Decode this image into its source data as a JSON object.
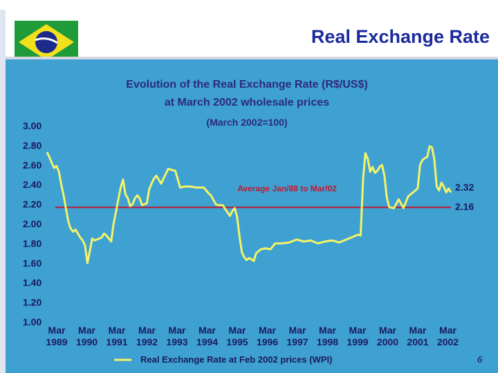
{
  "slide": {
    "title": "Real Exchange Rate",
    "page_number": "6"
  },
  "flag": {
    "green": "#1f9b3a",
    "yellow": "#f2e01c",
    "blue": "#1c2a8c",
    "band": "#ffffff"
  },
  "colors": {
    "background": "#3fa0d2",
    "series_line": "#f4f466",
    "average_line": "#c0182f",
    "title_text": "#1a2a9c"
  },
  "chart_data": {
    "type": "line",
    "title": "Evolution of the Real Exchange Rate (R$/US$)",
    "subtitle": "at March 2002 wholesale prices",
    "note": "(March 2002=100)",
    "y_ticks": [
      "3.00",
      "2.80",
      "2.60",
      "2.40",
      "2.20",
      "2.00",
      "1.80",
      "1.60",
      "1.40",
      "1.20",
      "1.00"
    ],
    "ylim": [
      1.0,
      3.0
    ],
    "x_ticks": [
      {
        "line1": "Mar",
        "line2": "1989"
      },
      {
        "line1": "Mar",
        "line2": "1990"
      },
      {
        "line1": "Mar",
        "line2": "1991"
      },
      {
        "line1": "Mar",
        "line2": "1992"
      },
      {
        "line1": "Mar",
        "line2": "1993"
      },
      {
        "line1": "Mar",
        "line2": "1994"
      },
      {
        "line1": "Mar",
        "line2": "1995"
      },
      {
        "line1": "Mar",
        "line2": "1996"
      },
      {
        "line1": "Mar",
        "line2": "1997"
      },
      {
        "line1": "Mar",
        "line2": "1998"
      },
      {
        "line1": "Mar",
        "line2": "1999"
      },
      {
        "line1": "Mar",
        "line2": "2000"
      },
      {
        "line1": "Mar",
        "line2": "2001"
      },
      {
        "line1": "Mar",
        "line2": "2002"
      }
    ],
    "average": {
      "label": "Average Jan/88 to Mar/02",
      "value": 2.16
    },
    "end_labels": {
      "last_value": "2.32",
      "average_value": "2.16"
    },
    "series": [
      {
        "name": "Real Exchange Rate at Feb 2002 prices (WPI)",
        "x": [
          1988.0,
          1988.083,
          1988.167,
          1988.25,
          1988.333,
          1988.417,
          1988.5,
          1988.583,
          1988.667,
          1988.75,
          1988.833,
          1988.917,
          1989.0,
          1989.083,
          1989.167,
          1989.25,
          1989.333,
          1989.417,
          1989.5,
          1989.583,
          1989.667,
          1989.75,
          1989.833,
          1989.917,
          1990.0,
          1990.083,
          1990.167,
          1990.25,
          1990.333,
          1990.417,
          1990.5,
          1990.583,
          1990.667,
          1990.75,
          1990.833,
          1990.917,
          1991.0,
          1991.083,
          1991.167,
          1991.25,
          1991.333,
          1991.417,
          1991.5,
          1991.583,
          1991.667,
          1991.75,
          1991.833,
          1991.917,
          1992.0,
          1992.25,
          1992.5,
          1992.667,
          1992.833,
          1993.0,
          1993.25,
          1993.5,
          1993.667,
          1993.75,
          1993.917,
          1994.0,
          1994.167,
          1994.25,
          1994.417,
          1994.5,
          1994.583,
          1994.667,
          1994.75,
          1994.833,
          1994.917,
          1995.0,
          1995.083,
          1995.167,
          1995.25,
          1995.333,
          1995.417,
          1995.5,
          1995.667,
          1995.833,
          1996.0,
          1996.25,
          1996.5,
          1996.75,
          1997.0,
          1997.25,
          1997.5,
          1997.75,
          1998.0,
          1998.25,
          1998.5,
          1998.75,
          1998.917,
          1999.0,
          1999.083,
          1999.167,
          1999.25,
          1999.333,
          1999.417,
          1999.5,
          1999.583,
          1999.667,
          1999.75,
          1999.833,
          1999.917,
          2000.0,
          2000.167,
          2000.333,
          2000.5,
          2000.667,
          2000.833,
          2001.0,
          2001.083,
          2001.167,
          2001.25,
          2001.333,
          2001.417,
          2001.5,
          2001.583,
          2001.667,
          2001.75,
          2001.833,
          2001.917,
          2002.0,
          2002.083,
          2002.167
        ],
        "y": [
          2.73,
          2.68,
          2.62,
          2.57,
          2.59,
          2.53,
          2.4,
          2.29,
          2.15,
          2.02,
          1.95,
          1.92,
          1.94,
          1.9,
          1.86,
          1.83,
          1.78,
          1.6,
          1.72,
          1.85,
          1.83,
          1.84,
          1.85,
          1.86,
          1.9,
          1.88,
          1.85,
          1.82,
          2.0,
          2.12,
          2.25,
          2.37,
          2.45,
          2.3,
          2.26,
          2.18,
          2.2,
          2.26,
          2.29,
          2.26,
          2.19,
          2.2,
          2.21,
          2.35,
          2.41,
          2.46,
          2.49,
          2.45,
          2.41,
          2.56,
          2.54,
          2.37,
          2.38,
          2.38,
          2.37,
          2.37,
          2.31,
          2.29,
          2.2,
          2.19,
          2.19,
          2.15,
          2.08,
          2.13,
          2.16,
          2.07,
          1.87,
          1.71,
          1.66,
          1.63,
          1.65,
          1.64,
          1.62,
          1.7,
          1.72,
          1.74,
          1.75,
          1.74,
          1.8,
          1.8,
          1.81,
          1.84,
          1.82,
          1.83,
          1.8,
          1.82,
          1.83,
          1.81,
          1.84,
          1.87,
          1.89,
          1.88,
          2.45,
          2.72,
          2.66,
          2.53,
          2.58,
          2.52,
          2.54,
          2.58,
          2.6,
          2.49,
          2.27,
          2.17,
          2.16,
          2.25,
          2.16,
          2.28,
          2.32,
          2.36,
          2.6,
          2.65,
          2.67,
          2.68,
          2.79,
          2.78,
          2.66,
          2.38,
          2.34,
          2.42,
          2.38,
          2.32,
          2.36,
          2.32
        ]
      }
    ]
  }
}
